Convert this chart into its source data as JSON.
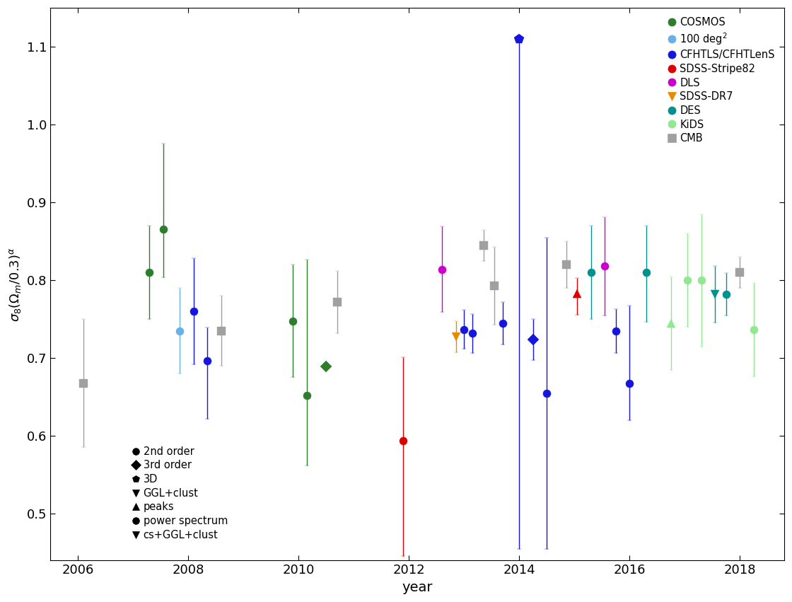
{
  "xlabel": "year",
  "ylabel": "$\\sigma_8(\\Omega_m/0.3)^\\alpha$",
  "xlim": [
    2005.5,
    2018.8
  ],
  "ylim": [
    0.44,
    1.15
  ],
  "yticks": [
    0.5,
    0.6,
    0.7,
    0.8,
    0.9,
    1.0,
    1.1
  ],
  "xticks": [
    2006,
    2008,
    2010,
    2012,
    2014,
    2016,
    2018
  ],
  "colors": {
    "COSMOS": "#2d7d2d",
    "100deg2": "#6ab0e8",
    "CFHTLS": "#1515e0",
    "SDSS_S82": "#dd0000",
    "DLS": "#cc00cc",
    "SDSS_DR7": "#e88a00",
    "DES": "#009090",
    "KiDS": "#90e890",
    "CMB": "#a0a0a0"
  },
  "data_points": [
    {
      "survey": "CMB",
      "year": 2006.1,
      "val": 0.668,
      "err_up": 0.082,
      "err_dn": 0.082,
      "marker": "s"
    },
    {
      "survey": "COSMOS",
      "year": 2007.3,
      "val": 0.81,
      "err_up": 0.06,
      "err_dn": 0.06,
      "marker": "o"
    },
    {
      "survey": "COSMOS",
      "year": 2007.55,
      "val": 0.866,
      "err_up": 0.11,
      "err_dn": 0.062,
      "marker": "o"
    },
    {
      "survey": "100deg2",
      "year": 2007.85,
      "val": 0.735,
      "err_up": 0.055,
      "err_dn": 0.055,
      "marker": "o"
    },
    {
      "survey": "CFHTLS",
      "year": 2008.1,
      "val": 0.76,
      "err_up": 0.068,
      "err_dn": 0.068,
      "marker": "o"
    },
    {
      "survey": "CFHTLS",
      "year": 2008.35,
      "val": 0.697,
      "err_up": 0.042,
      "err_dn": 0.075,
      "marker": "o"
    },
    {
      "survey": "CMB",
      "year": 2008.6,
      "val": 0.735,
      "err_up": 0.045,
      "err_dn": 0.045,
      "marker": "s"
    },
    {
      "survey": "COSMOS",
      "year": 2009.9,
      "val": 0.748,
      "err_up": 0.072,
      "err_dn": 0.072,
      "marker": "o"
    },
    {
      "survey": "COSMOS",
      "year": 2010.15,
      "val": 0.652,
      "err_up": 0.175,
      "err_dn": 0.09,
      "marker": "o"
    },
    {
      "survey": "COSMOS",
      "year": 2010.5,
      "val": 0.689,
      "err_up": 0.0,
      "err_dn": 0.0,
      "marker": "D"
    },
    {
      "survey": "CMB",
      "year": 2010.7,
      "val": 0.772,
      "err_up": 0.04,
      "err_dn": 0.04,
      "marker": "s"
    },
    {
      "survey": "SDSS_S82",
      "year": 2011.9,
      "val": 0.594,
      "err_up": 0.107,
      "err_dn": 0.148,
      "marker": "o"
    },
    {
      "survey": "DLS",
      "year": 2012.6,
      "val": 0.814,
      "err_up": 0.055,
      "err_dn": 0.055,
      "marker": "o"
    },
    {
      "survey": "SDSS_DR7",
      "year": 2012.85,
      "val": 0.728,
      "err_up": 0.02,
      "err_dn": 0.02,
      "marker": "v"
    },
    {
      "survey": "CFHTLS",
      "year": 2013.0,
      "val": 0.737,
      "err_up": 0.025,
      "err_dn": 0.025,
      "marker": "o"
    },
    {
      "survey": "CFHTLS",
      "year": 2013.15,
      "val": 0.732,
      "err_up": 0.025,
      "err_dn": 0.025,
      "marker": "o"
    },
    {
      "survey": "CMB",
      "year": 2013.35,
      "val": 0.845,
      "err_up": 0.02,
      "err_dn": 0.02,
      "marker": "s"
    },
    {
      "survey": "CMB",
      "year": 2013.55,
      "val": 0.793,
      "err_up": 0.05,
      "err_dn": 0.05,
      "marker": "s"
    },
    {
      "survey": "CFHTLS",
      "year": 2013.7,
      "val": 0.745,
      "err_up": 0.027,
      "err_dn": 0.027,
      "marker": "o"
    },
    {
      "survey": "CFHTLS",
      "year": 2014.0,
      "val": 1.11,
      "err_up": 0.0,
      "err_dn": 0.655,
      "marker": "p"
    },
    {
      "survey": "CFHTLS",
      "year": 2014.25,
      "val": 0.724,
      "err_up": 0.026,
      "err_dn": 0.026,
      "marker": "D"
    },
    {
      "survey": "CFHTLS",
      "year": 2014.5,
      "val": 0.655,
      "err_up": 0.2,
      "err_dn": 0.2,
      "marker": "o"
    },
    {
      "survey": "CMB",
      "year": 2014.85,
      "val": 0.82,
      "err_up": 0.03,
      "err_dn": 0.03,
      "marker": "s"
    },
    {
      "survey": "SDSS_S82",
      "year": 2015.05,
      "val": 0.783,
      "err_up": 0.02,
      "err_dn": 0.027,
      "marker": "^"
    },
    {
      "survey": "DES",
      "year": 2015.3,
      "val": 0.81,
      "err_up": 0.06,
      "err_dn": 0.06,
      "marker": "o"
    },
    {
      "survey": "DLS",
      "year": 2015.55,
      "val": 0.818,
      "err_up": 0.063,
      "err_dn": 0.063,
      "marker": "o"
    },
    {
      "survey": "CFHTLS",
      "year": 2015.75,
      "val": 0.735,
      "err_up": 0.028,
      "err_dn": 0.028,
      "marker": "o"
    },
    {
      "survey": "CFHTLS",
      "year": 2016.0,
      "val": 0.668,
      "err_up": 0.1,
      "err_dn": 0.048,
      "marker": "o"
    },
    {
      "survey": "DES",
      "year": 2016.3,
      "val": 0.81,
      "err_up": 0.06,
      "err_dn": 0.063,
      "marker": "o"
    },
    {
      "survey": "KiDS",
      "year": 2016.75,
      "val": 0.745,
      "err_up": 0.06,
      "err_dn": 0.06,
      "marker": "^"
    },
    {
      "survey": "KiDS",
      "year": 2017.05,
      "val": 0.8,
      "err_up": 0.06,
      "err_dn": 0.06,
      "marker": "o"
    },
    {
      "survey": "KiDS",
      "year": 2017.3,
      "val": 0.8,
      "err_up": 0.085,
      "err_dn": 0.085,
      "marker": "o"
    },
    {
      "survey": "DES",
      "year": 2017.55,
      "val": 0.782,
      "err_up": 0.036,
      "err_dn": 0.036,
      "marker": "v"
    },
    {
      "survey": "DES",
      "year": 2017.75,
      "val": 0.782,
      "err_up": 0.027,
      "err_dn": 0.027,
      "marker": "o"
    },
    {
      "survey": "CMB",
      "year": 2018.0,
      "val": 0.81,
      "err_up": 0.02,
      "err_dn": 0.02,
      "marker": "s"
    },
    {
      "survey": "KiDS",
      "year": 2018.25,
      "val": 0.737,
      "err_up": 0.06,
      "err_dn": 0.06,
      "marker": "o"
    }
  ],
  "legend_surveys": [
    {
      "label": "COSMOS",
      "color": "#2d7d2d",
      "marker": "o"
    },
    {
      "label": "100 deg$^2$",
      "color": "#6ab0e8",
      "marker": "o"
    },
    {
      "label": "CFHTLS/CFHTLenS",
      "color": "#1515e0",
      "marker": "o"
    },
    {
      "label": "SDSS-Stripe82",
      "color": "#dd0000",
      "marker": "o"
    },
    {
      "label": "DLS",
      "color": "#cc00cc",
      "marker": "o"
    },
    {
      "label": "SDSS-DR7",
      "color": "#e88a00",
      "marker": "v"
    },
    {
      "label": "DES",
      "color": "#009090",
      "marker": "o"
    },
    {
      "label": "KiDS",
      "color": "#90e890",
      "marker": "o"
    },
    {
      "label": "CMB",
      "color": "#a0a0a0",
      "marker": "s"
    }
  ],
  "legend_methods": [
    {
      "label": "2nd order",
      "marker": "o"
    },
    {
      "label": "3rd order",
      "marker": "D"
    },
    {
      "label": "3D",
      "marker": "p"
    },
    {
      "label": "GGL+clust",
      "marker": "v"
    },
    {
      "label": "peaks",
      "marker": "^"
    },
    {
      "label": "power spectrum",
      "marker": "o"
    },
    {
      "label": "cs+GGL+clust",
      "marker": "v"
    }
  ]
}
